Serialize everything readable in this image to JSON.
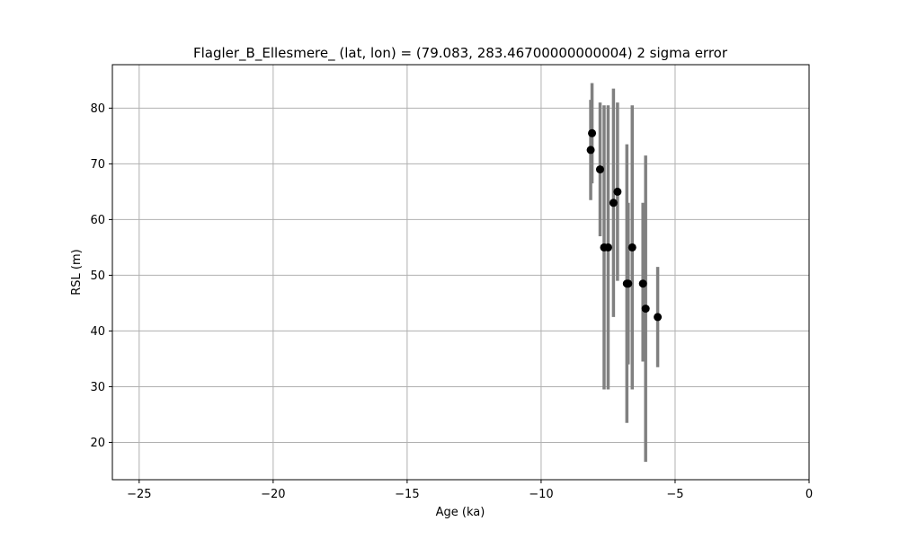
{
  "chart_data": {
    "type": "scatter",
    "title": "Flagler_B_Ellesmere_ (lat, lon) = (79.083, 283.46700000000004)  2 sigma error",
    "xlabel": "Age (ka)",
    "ylabel": "RSL (m)",
    "xlim": [
      -26,
      0
    ],
    "ylim": [
      13.3,
      87.8
    ],
    "xticks": [
      -25,
      -20,
      -15,
      -10,
      -5,
      0
    ],
    "yticks": [
      20,
      30,
      40,
      50,
      60,
      70,
      80
    ],
    "grid": true,
    "colors": {
      "errorbar": "#808080",
      "marker": "#000000"
    },
    "points": [
      {
        "x": -8.15,
        "y": 72.5,
        "ylo": 63.5,
        "yhi": 81.5
      },
      {
        "x": -8.1,
        "y": 75.5,
        "ylo": 66.5,
        "yhi": 84.5
      },
      {
        "x": -7.8,
        "y": 69.0,
        "ylo": 57.0,
        "yhi": 81.0
      },
      {
        "x": -7.65,
        "y": 55.0,
        "ylo": 29.5,
        "yhi": 80.5
      },
      {
        "x": -7.5,
        "y": 55.0,
        "ylo": 29.5,
        "yhi": 80.5
      },
      {
        "x": -7.3,
        "y": 63.0,
        "ylo": 42.5,
        "yhi": 83.5
      },
      {
        "x": -7.15,
        "y": 65.0,
        "ylo": 49.0,
        "yhi": 81.0
      },
      {
        "x": -6.8,
        "y": 48.5,
        "ylo": 23.5,
        "yhi": 73.5
      },
      {
        "x": -6.75,
        "y": 48.5,
        "ylo": 34.0,
        "yhi": 63.0
      },
      {
        "x": -6.6,
        "y": 55.0,
        "ylo": 29.5,
        "yhi": 80.5
      },
      {
        "x": -6.2,
        "y": 48.5,
        "ylo": 34.5,
        "yhi": 63.0
      },
      {
        "x": -6.1,
        "y": 44.0,
        "ylo": 16.5,
        "yhi": 71.5
      },
      {
        "x": -5.65,
        "y": 42.5,
        "ylo": 33.5,
        "yhi": 51.5
      }
    ]
  }
}
